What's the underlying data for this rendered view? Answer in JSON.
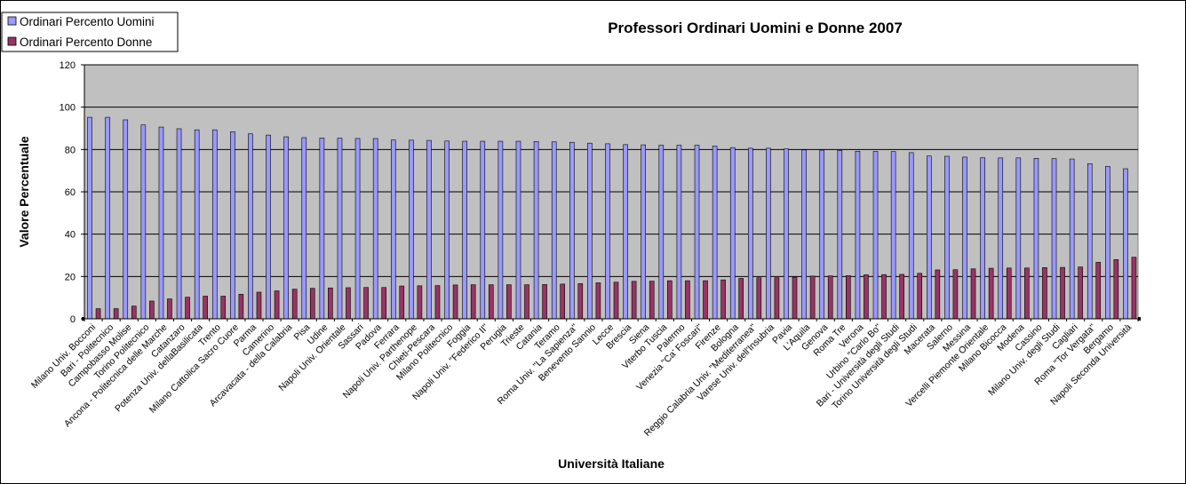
{
  "chart_data": {
    "type": "bar",
    "title": "Professori Ordinari Uomini e Donne 2007",
    "xlabel": "Università Italiane",
    "ylabel": "Valore Percentuale",
    "ylim": [
      0,
      120
    ],
    "yticks": [
      0,
      20,
      40,
      60,
      80,
      100,
      120
    ],
    "grid": true,
    "legend_position": "top-left",
    "categories": [
      "Milano Univ. Bocconi",
      "Bari - Politecnico",
      "Campobasso Molise",
      "Torino Politecnico",
      "Ancona - Politecnica delle Marche",
      "Catanzaro",
      "Potenza Univ. dellaBasilicata",
      "Trento",
      "Milano Cattolica Sacro Cuore",
      "Parma",
      "Camerino",
      "Arcavacata - della Calabria",
      "Pisa",
      "Udine",
      "Napoli Univ. Orientale",
      "Sassari",
      "Padova",
      "Ferrara",
      "Napoli Univ. Parthenope",
      "Chieti-Pescara",
      "Milano Politecnico",
      "Foggia",
      "Napoli Univ. \"Federico II\"",
      "Perugia",
      "Trieste",
      "Catania",
      "Teramo",
      "Roma Univ. \"La Sapienza\"",
      "Benevento Sannio",
      "Lecce",
      "Brescia",
      "Siena",
      "Viterbo Tuscia",
      "Palermo",
      "Venezia \"Ca' Foscari\"",
      "Firenze",
      "Bologna",
      "Reggio Calabria Univ. \"Mediterranea\"",
      "Varese Univ. dell'Insubria",
      "Pavia",
      "L'Aquila",
      "Genova",
      "Roma Tre",
      "Verona",
      "Urbino \"Carlo Bo\"",
      "Bari - Università degli Studi",
      "Torino Università degli Studi",
      "Macerata",
      "Salerno",
      "Messina",
      "Vercelli Piemonte Orientale",
      "Milano Bicocca",
      "Modena",
      "Cassino",
      "Milano Univ. degli Studi",
      "Cagliari",
      "Roma \"Tor Vergata\"",
      "Bergamo",
      "Napoli Seconda Università"
    ],
    "series": [
      {
        "name": "Ordinari Percento Uomini",
        "color": "#9999ff",
        "values": [
          95.2,
          95.2,
          94.0,
          91.6,
          90.6,
          89.8,
          89.3,
          89.3,
          88.4,
          87.4,
          86.8,
          86.0,
          85.6,
          85.4,
          85.3,
          85.2,
          85.2,
          84.5,
          84.4,
          84.3,
          84.0,
          83.9,
          83.9,
          83.9,
          83.9,
          83.8,
          83.6,
          83.4,
          83.0,
          82.7,
          82.3,
          82.2,
          82.0,
          82.0,
          82.0,
          81.6,
          80.9,
          80.6,
          80.6,
          80.3,
          79.8,
          79.7,
          79.6,
          79.2,
          79.1,
          79.0,
          78.5,
          76.9,
          76.8,
          76.4,
          76.1,
          76.0,
          76.0,
          75.8,
          75.7,
          75.5,
          73.3,
          72.0,
          70.9
        ]
      },
      {
        "name": "Ordinari Percento Donne",
        "color": "#993366",
        "values": [
          4.8,
          4.8,
          6.0,
          8.4,
          9.4,
          10.2,
          10.7,
          10.7,
          11.6,
          12.6,
          13.2,
          14.0,
          14.4,
          14.6,
          14.7,
          14.8,
          14.8,
          15.5,
          15.6,
          15.7,
          16.0,
          16.1,
          16.1,
          16.1,
          16.1,
          16.2,
          16.4,
          16.6,
          17.0,
          17.3,
          17.7,
          17.8,
          18.0,
          18.0,
          18.0,
          18.4,
          19.1,
          19.4,
          19.4,
          19.7,
          20.2,
          20.3,
          20.4,
          20.8,
          20.9,
          21.0,
          21.5,
          23.1,
          23.2,
          23.6,
          23.9,
          24.0,
          24.0,
          24.2,
          24.3,
          24.5,
          26.7,
          28.0,
          29.1
        ]
      }
    ]
  },
  "colors": {
    "plot_background": "#c0c0c0",
    "uomini_bar": "#9999ff",
    "donne_bar": "#993366"
  }
}
